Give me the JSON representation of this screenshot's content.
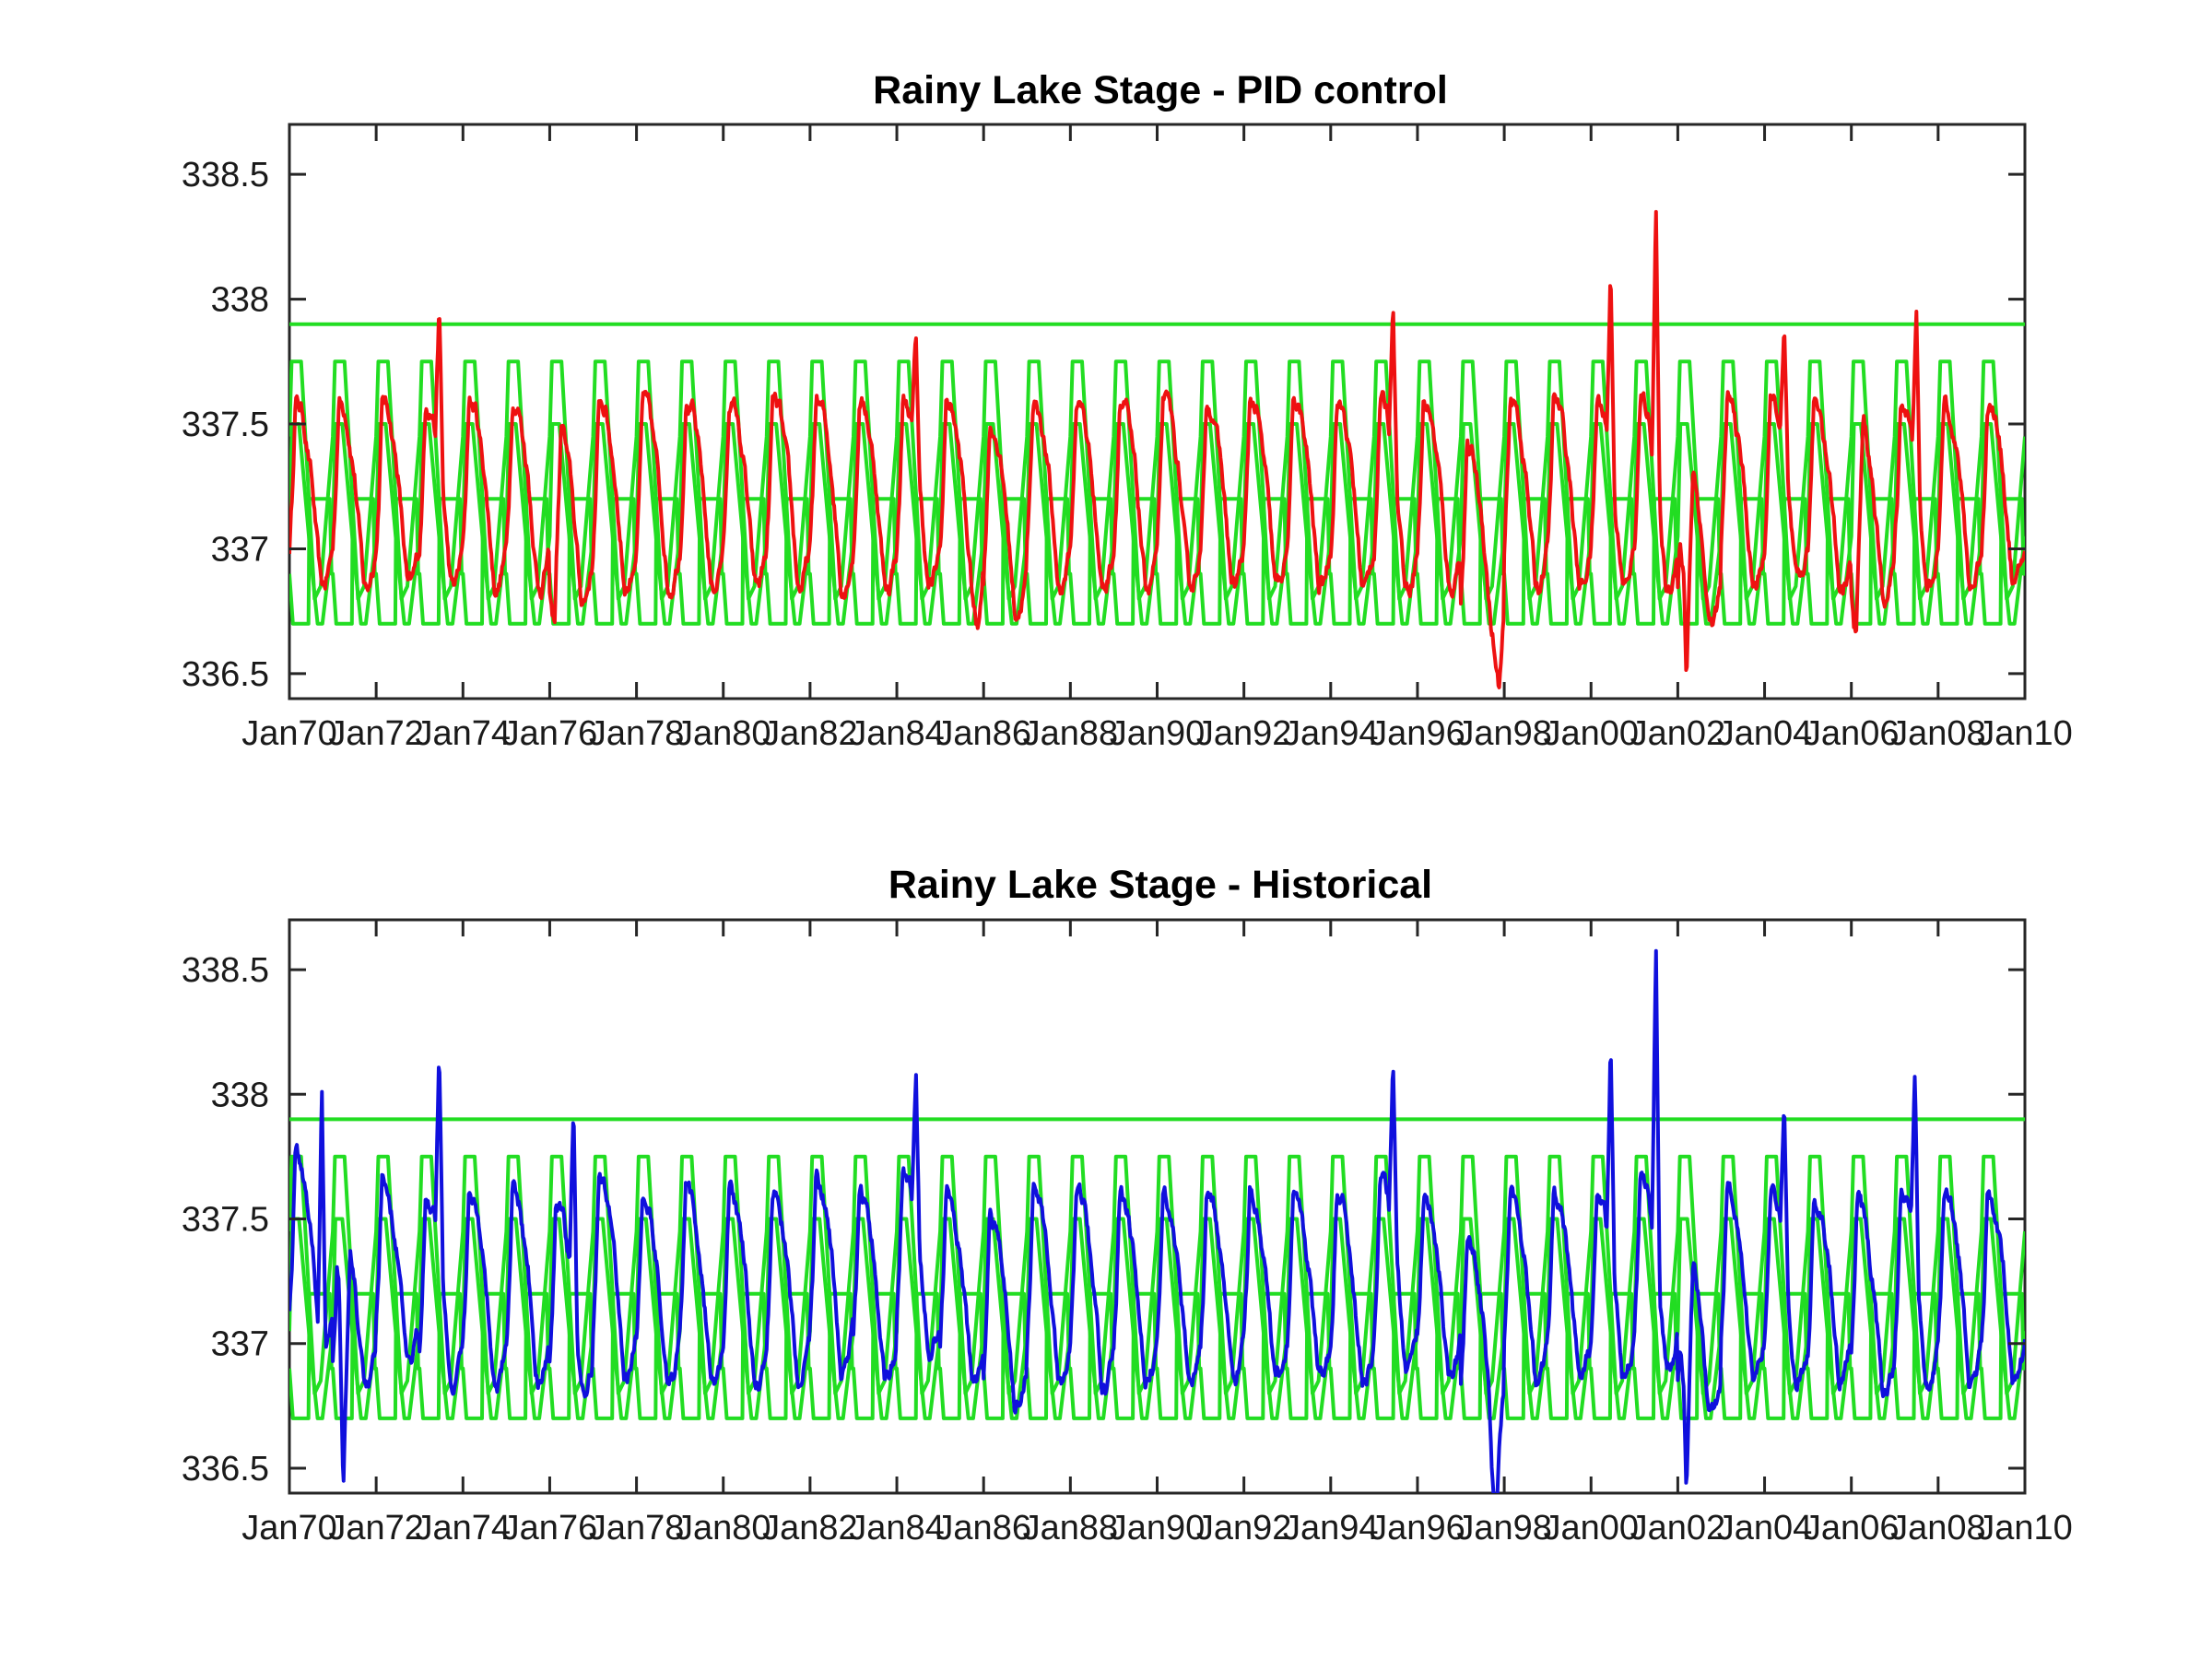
{
  "chart_data": [
    {
      "type": "line",
      "title": "Rainy Lake Stage - PID control",
      "xlabel": "",
      "ylabel": "",
      "xlim": [
        "1970-01-01",
        "2010-01-01"
      ],
      "ylim": [
        336.4,
        338.7
      ],
      "x_tick_labels": [
        "Jan70",
        "Jan72",
        "Jan74",
        "Jan76",
        "Jan78",
        "Jan80",
        "Jan82",
        "Jan84",
        "Jan86",
        "Jan88",
        "Jan90",
        "Jan92",
        "Jan94",
        "Jan96",
        "Jan98",
        "Jan00",
        "Jan02",
        "Jan04",
        "Jan06",
        "Jan08",
        "Jan10"
      ],
      "y_ticks": [
        336.5,
        337,
        337.5,
        338,
        338.5
      ],
      "y_tick_labels": [
        "336.5",
        "337",
        "337.5",
        "338",
        "338.5"
      ],
      "grid": false,
      "legend": "none",
      "reference_lines": {
        "color": "#22dd22",
        "constant_level": 337.9,
        "rule_curve_upper": [
          [
            0.0,
            337.45
          ],
          [
            0.05,
            337.75
          ],
          [
            0.27,
            337.75
          ],
          [
            0.45,
            337.2
          ],
          [
            0.58,
            336.8
          ],
          [
            0.72,
            336.85
          ],
          [
            1.0,
            337.45
          ]
        ],
        "rule_curve_middle": [
          [
            0.0,
            337.05
          ],
          [
            0.06,
            337.5
          ],
          [
            0.22,
            337.5
          ],
          [
            0.5,
            336.95
          ],
          [
            0.65,
            336.7
          ],
          [
            0.76,
            336.7
          ],
          [
            1.0,
            337.05
          ]
        ],
        "rule_curve_lower": [
          [
            0.0,
            336.9
          ],
          [
            0.08,
            336.7
          ],
          [
            0.44,
            336.7
          ],
          [
            0.46,
            337.2
          ],
          [
            0.93,
            337.2
          ],
          [
            0.97,
            336.9
          ],
          [
            1.0,
            336.9
          ]
        ]
      },
      "series": [
        {
          "color": "#ee1111",
          "annual_pattern": [
            [
              0.0,
              337.0
            ],
            [
              0.06,
              337.2
            ],
            [
              0.14,
              337.6
            ],
            [
              0.3,
              337.55
            ],
            [
              0.5,
              337.3
            ],
            [
              0.72,
              336.85
            ],
            [
              0.82,
              336.85
            ],
            [
              1.0,
              337.0
            ]
          ],
          "annual_offset_by_year": [
            0.0,
            0.0,
            0.0,
            0.0,
            0.0,
            0.0,
            -0.05,
            0.0,
            0.0,
            0.0,
            0.0,
            0.0,
            0.0,
            0.0,
            0.0,
            0.0,
            -0.1,
            0.0,
            0.0,
            0.0,
            0.0,
            0.0,
            0.0,
            0.0,
            0.0,
            0.0,
            0.0,
            -0.2,
            0.0,
            0.0,
            0.0,
            0.0,
            -0.15,
            0.0,
            0.0,
            0.0,
            -0.05,
            0.0,
            0.0,
            0.0
          ],
          "peaks": [
            {
              "date": "1973-06-15",
              "value": 337.97
            },
            {
              "date": "1984-06-10",
              "value": 337.85
            },
            {
              "date": "1995-06-10",
              "value": 338.03
            },
            {
              "date": "2000-06-15",
              "value": 338.13
            },
            {
              "date": "2001-07-01",
              "value": 338.4
            },
            {
              "date": "2004-06-15",
              "value": 337.87
            },
            {
              "date": "2007-07-01",
              "value": 338.0
            }
          ],
          "minima": [
            {
              "date": "1976-02-15",
              "value": 336.76
            },
            {
              "date": "1985-11-15",
              "value": 336.67
            },
            {
              "date": "1997-11-20",
              "value": 336.63
            },
            {
              "date": "2002-03-15",
              "value": 336.62
            },
            {
              "date": "2006-02-15",
              "value": 336.72
            }
          ]
        },
        {
          "color": "#1010dd",
          "annual_pattern": [
            [
              0.0,
              337.0
            ],
            [
              0.06,
              337.2
            ],
            [
              0.14,
              337.62
            ],
            [
              0.3,
              337.55
            ],
            [
              0.5,
              337.3
            ],
            [
              0.72,
              336.85
            ],
            [
              0.82,
              336.85
            ],
            [
              1.0,
              337.0
            ]
          ],
          "annual_offset_by_year": [
            0.15,
            -0.05,
            0.05,
            0.0,
            0.0,
            0.0,
            -0.05,
            0.05,
            0.0,
            0.0,
            0.0,
            0.0,
            0.05,
            0.0,
            0.1,
            0.0,
            -0.1,
            0.0,
            0.0,
            0.0,
            0.0,
            0.0,
            0.0,
            0.0,
            0.0,
            0.05,
            0.0,
            -0.2,
            0.0,
            0.0,
            0.0,
            0.05,
            -0.15,
            0.0,
            0.0,
            0.0,
            -0.05,
            0.0,
            0.0,
            0.0
          ],
          "peaks": [
            {
              "date": "1970-10-01",
              "value": 337.92
            },
            {
              "date": "1973-06-15",
              "value": 338.19
            },
            {
              "date": "1976-07-20",
              "value": 337.97
            },
            {
              "date": "1984-06-10",
              "value": 338.02
            },
            {
              "date": "1995-06-10",
              "value": 338.09
            },
            {
              "date": "2000-06-15",
              "value": 338.23
            },
            {
              "date": "2001-07-01",
              "value": 338.57
            },
            {
              "date": "2004-06-15",
              "value": 337.94
            },
            {
              "date": "2007-06-20",
              "value": 338.09
            }
          ],
          "minima": [
            {
              "date": "1971-04-01",
              "value": 336.5
            },
            {
              "date": "1997-10-20",
              "value": 336.48
            },
            {
              "date": "2002-03-15",
              "value": 336.58
            }
          ]
        }
      ]
    },
    {
      "type": "line",
      "title": "Rainy Lake Stage - Historical",
      "xlabel": "",
      "ylabel": "",
      "xlim": [
        "1970-01-01",
        "2010-01-01"
      ],
      "ylim": [
        336.4,
        338.7
      ],
      "x_tick_labels": [
        "Jan70",
        "Jan72",
        "Jan74",
        "Jan76",
        "Jan78",
        "Jan80",
        "Jan82",
        "Jan84",
        "Jan86",
        "Jan88",
        "Jan90",
        "Jan92",
        "Jan94",
        "Jan96",
        "Jan98",
        "Jan00",
        "Jan02",
        "Jan04",
        "Jan06",
        "Jan08",
        "Jan10"
      ],
      "y_ticks": [
        336.5,
        337,
        337.5,
        338,
        338.5
      ],
      "y_tick_labels": [
        "336.5",
        "337",
        "337.5",
        "338",
        "338.5"
      ],
      "grid": false,
      "legend": "none"
    }
  ]
}
